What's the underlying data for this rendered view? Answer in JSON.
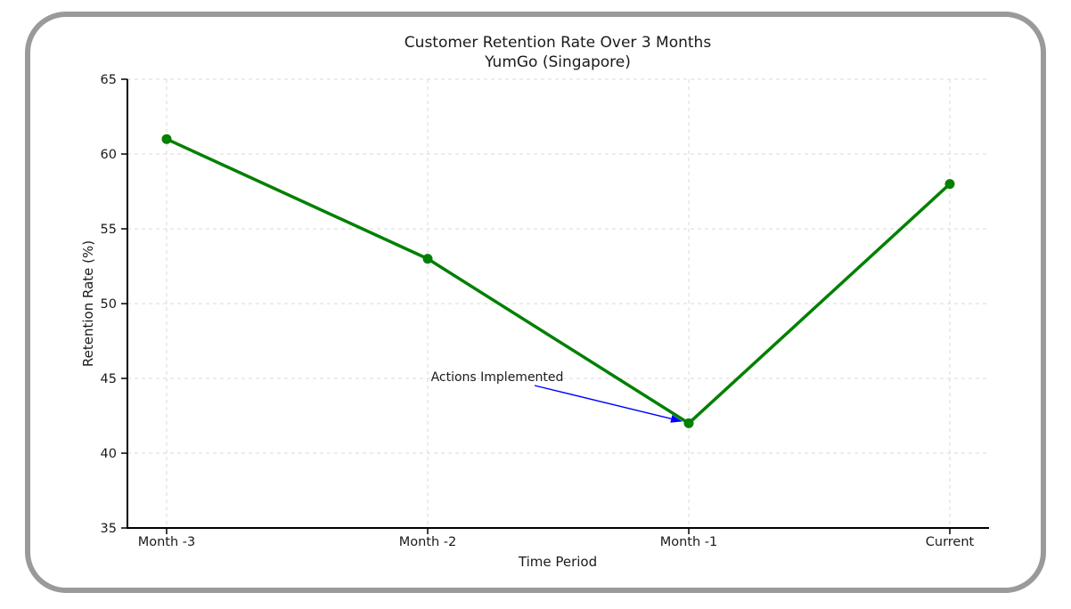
{
  "page": {
    "background_color": "#ffffff",
    "frame_border_color": "#9a9a9a"
  },
  "chart_data": {
    "type": "line",
    "title": "Customer Retention Rate Over 3 Months",
    "subtitle": "YumGo (Singapore)",
    "xlabel": "Time Period",
    "ylabel": "Retention Rate (%)",
    "categories": [
      "Month -3",
      "Month -2",
      "Month -1",
      "Current"
    ],
    "series": [
      {
        "name": "Retention Rate",
        "values": [
          61,
          53,
          42,
          58
        ],
        "color": "#008000",
        "marker": "circle"
      }
    ],
    "ylim": [
      35,
      65
    ],
    "yticks": [
      35,
      40,
      45,
      50,
      55,
      60,
      65
    ],
    "grid": "dashed",
    "grid_color": "#d8d8d8",
    "legend": "none",
    "annotation": {
      "text": "Actions Implemented",
      "color": "#0000ff",
      "target_category": "Month -1",
      "target_value": 42
    }
  }
}
